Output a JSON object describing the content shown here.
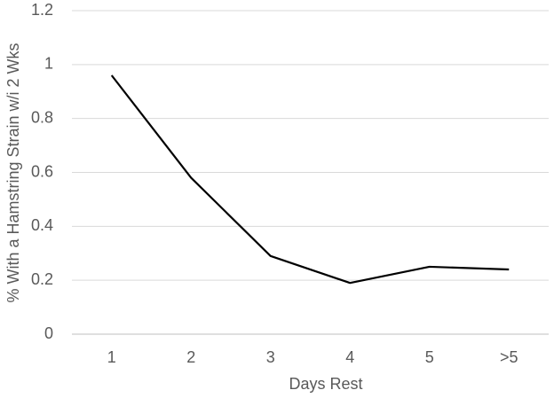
{
  "chart_data": {
    "type": "line",
    "xlabel": "Days Rest",
    "ylabel": "% With a Hamstring Strain w/i 2 Wks",
    "categories": [
      "1",
      "2",
      "3",
      "4",
      "5",
      ">5"
    ],
    "series": [
      {
        "color": "#000000",
        "values": [
          0.96,
          0.58,
          0.29,
          0.19,
          0.25,
          0.24
        ]
      }
    ],
    "ylim": [
      0,
      1.2
    ],
    "yticks": [
      0,
      0.2,
      0.4,
      0.6,
      0.8,
      1,
      1.2
    ],
    "grid": true
  }
}
